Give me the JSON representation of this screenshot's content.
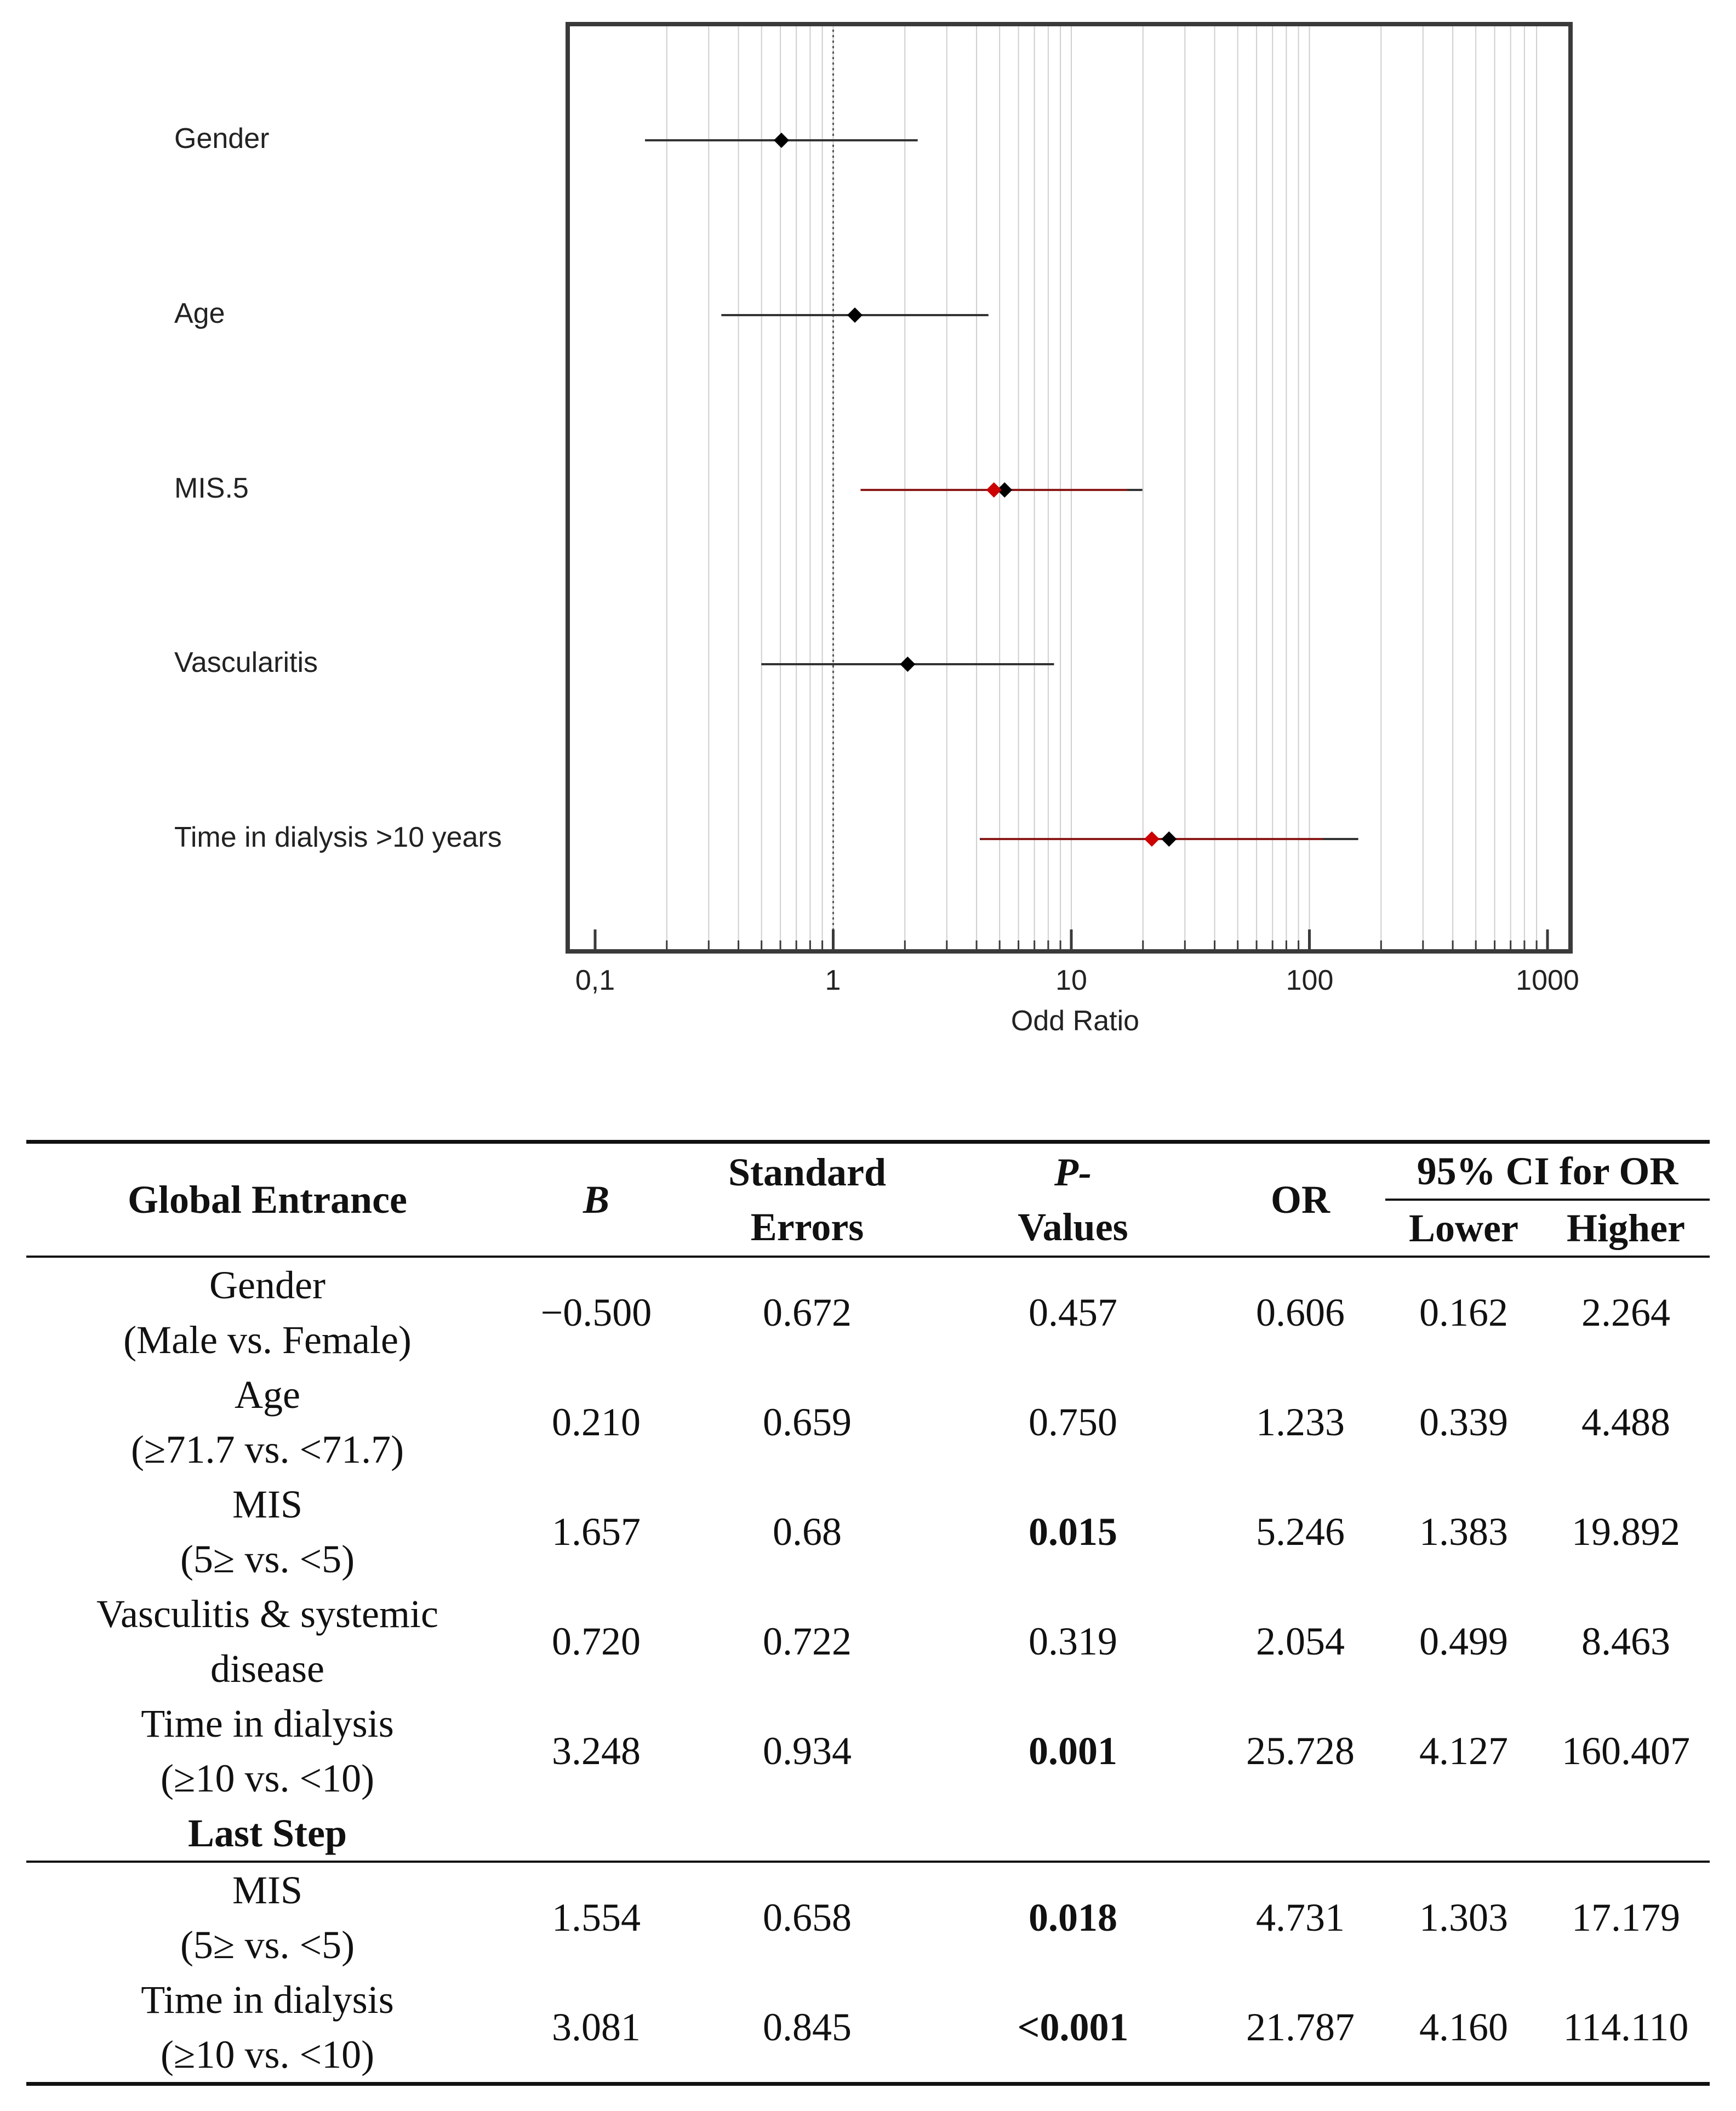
{
  "chart_data": {
    "type": "forest",
    "xscale": "log",
    "xlabel": "Odd Ratio",
    "xticks": [
      "0,1",
      "1",
      "10",
      "100",
      "1000"
    ],
    "xlim": [
      0.1,
      1000
    ],
    "reference_line": 1,
    "rows": [
      {
        "label": "Gender",
        "or": 0.606,
        "lower": 0.162,
        "upper": 2.264,
        "last_step": null
      },
      {
        "label": "Age",
        "or": 1.233,
        "lower": 0.339,
        "upper": 4.488,
        "last_step": null
      },
      {
        "label": "MIS.5",
        "or": 5.246,
        "lower": 1.383,
        "upper": 19.892,
        "last_step": {
          "or": 4.731,
          "lower": 1.303,
          "upper": 17.179
        }
      },
      {
        "label": "Vascularitis",
        "or": 2.054,
        "lower": 0.499,
        "upper": 8.463,
        "last_step": null
      },
      {
        "label": "Time in dialysis >10 years",
        "or": 25.728,
        "lower": 4.127,
        "upper": 160.407,
        "last_step": {
          "or": 21.787,
          "lower": 4.16,
          "upper": 114.11
        }
      }
    ],
    "colors": {
      "global": "#000000",
      "last_step": "#cc0000",
      "frame": "#3a3a3a",
      "grid": "#cfcfcf"
    }
  },
  "table": {
    "headers": {
      "col1": "Global Entrance",
      "b": "B",
      "se_line1": "Standard",
      "se_line2": "Errors",
      "p_line1": "P-",
      "p_line2": "Values",
      "or": "OR",
      "ci": "95% CI for OR",
      "lower": "Lower",
      "higher": "Higher"
    },
    "global_rows": [
      {
        "name1": "Gender",
        "name2": "(Male vs. Female)",
        "b": "−0.500",
        "se": "0.672",
        "p": "0.457",
        "or": "0.606",
        "lower": "0.162",
        "higher": "2.264"
      },
      {
        "name1": "Age",
        "name2": "(≥71.7 vs. <71.7)",
        "b": "0.210",
        "se": "0.659",
        "p": "0.750",
        "or": "1.233",
        "lower": "0.339",
        "higher": "4.488"
      },
      {
        "name1": "MIS",
        "name2": "(5≥ vs. <5)",
        "b": "1.657",
        "se": "0.68",
        "p": "0.015",
        "or": "5.246",
        "lower": "1.383",
        "higher": "19.892"
      },
      {
        "name1": "Vasculitis & systemic",
        "name2": "disease",
        "b": "0.720",
        "se": "0.722",
        "p": "0.319",
        "or": "2.054",
        "lower": "0.499",
        "higher": "8.463"
      },
      {
        "name1": "Time in dialysis",
        "name2": "(≥10 vs. <10)",
        "b": "3.248",
        "se": "0.934",
        "p": "0.001",
        "or": "25.728",
        "lower": "4.127",
        "higher": "160.407"
      }
    ],
    "last_step_label": "Last Step",
    "last_rows": [
      {
        "name1": "MIS",
        "name2": "(5≥ vs. <5)",
        "b": "1.554",
        "se": "0.658",
        "p": "0.018",
        "or": "4.731",
        "lower": "1.303",
        "higher": "17.179"
      },
      {
        "name1": "Time in dialysis",
        "name2": "(≥10 vs. <10)",
        "b": "3.081",
        "se": "0.845",
        "p": "<0.001",
        "or": "21.787",
        "lower": "4.160",
        "higher": "114.110"
      }
    ]
  }
}
